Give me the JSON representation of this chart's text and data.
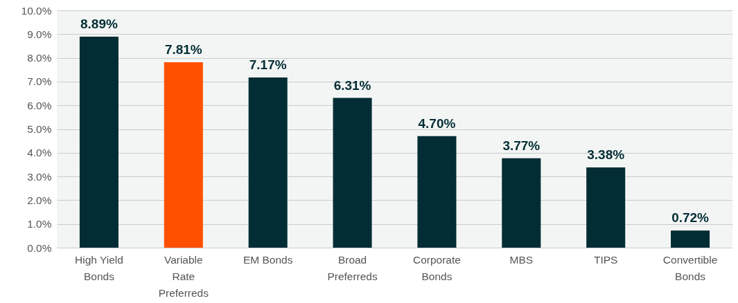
{
  "chart_data": {
    "type": "bar",
    "categories": [
      "High Yield Bonds",
      "Variable Rate Preferreds",
      "EM Bonds",
      "Broad Preferreds",
      "Corporate Bonds",
      "MBS",
      "TIPS",
      "Convertible Bonds"
    ],
    "values": [
      8.89,
      7.81,
      7.17,
      6.31,
      4.7,
      3.77,
      3.38,
      0.72
    ],
    "colors": [
      "#022d35",
      "#ff5000",
      "#022d35",
      "#022d35",
      "#022d35",
      "#022d35",
      "#022d35",
      "#022d35"
    ],
    "value_labels": [
      "8.89%",
      "7.81%",
      "7.17%",
      "6.31%",
      "4.70%",
      "3.77%",
      "3.38%",
      "0.72%"
    ],
    "ylim": [
      0,
      10
    ],
    "yticks": [
      {
        "value": 0,
        "label": "0.0%"
      },
      {
        "value": 1,
        "label": "1.0%"
      },
      {
        "value": 2,
        "label": "2.0%"
      },
      {
        "value": 3,
        "label": "3.0%"
      },
      {
        "value": 4,
        "label": "4.0%"
      },
      {
        "value": 5,
        "label": "5.0%"
      },
      {
        "value": 6,
        "label": "6.0%"
      },
      {
        "value": 7,
        "label": "7.0%"
      },
      {
        "value": 8,
        "label": "8.0%"
      },
      {
        "value": 9,
        "label": "9.0%"
      },
      {
        "value": 10,
        "label": "10.0%"
      }
    ],
    "grid": "y"
  }
}
